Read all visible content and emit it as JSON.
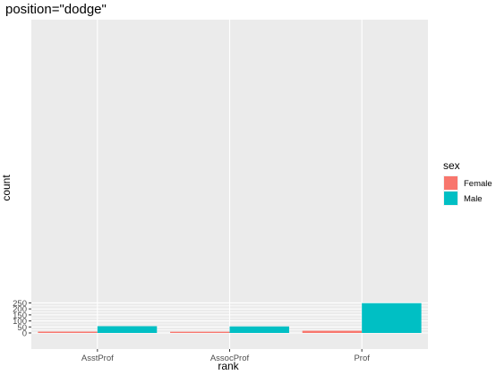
{
  "chart_data": {
    "type": "bar",
    "title": "position=\"dodge\"",
    "xlabel": "rank",
    "ylabel": "count",
    "categories": [
      "AsstProf",
      "AssocProf",
      "Prof"
    ],
    "series": [
      {
        "name": "Female",
        "color": "#F8766D",
        "values": [
          11,
          10,
          18
        ]
      },
      {
        "name": "Male",
        "color": "#00BFC4",
        "values": [
          56,
          54,
          248
        ]
      }
    ],
    "ylim": [
      0,
      260
    ],
    "yticks": [
      0,
      50,
      100,
      150,
      200,
      250
    ],
    "legend": {
      "title": "sex",
      "position": "right"
    },
    "grid": true,
    "panel_background": "#EBEBEB"
  }
}
